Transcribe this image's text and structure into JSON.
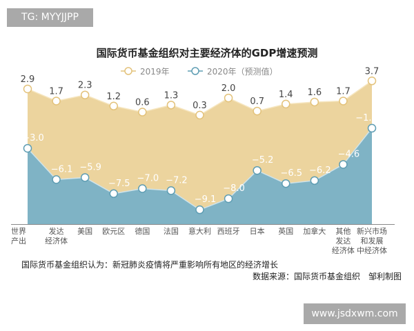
{
  "watermarks": {
    "top_left": "TG: MYYJJPP",
    "bottom_right": "www.jsdxwm.com"
  },
  "chart_data": {
    "type": "area",
    "title": "国际货币基金组织对主要经济体的GDP增速预测",
    "categories": [
      "世界\n产出",
      "发达\n经济体",
      "美国",
      "欧元区",
      "德国",
      "法国",
      "意大利",
      "西班牙",
      "日本",
      "英国",
      "加拿大",
      "其他\n发达\n经济体",
      "新兴市场\n和发展\n中经济体"
    ],
    "series": [
      {
        "name": "2019年",
        "color": "#ecd49e",
        "values": [
          2.9,
          1.7,
          2.3,
          1.2,
          0.6,
          1.3,
          0.3,
          2.0,
          0.7,
          1.4,
          1.6,
          1.7,
          3.7
        ],
        "labels": [
          "2.9",
          "1.7",
          "2.3",
          "1.2",
          "0.6",
          "1.3",
          "0.3",
          "2.0",
          "0.7",
          "1.4",
          "1.6",
          "1.7",
          "3.7"
        ]
      },
      {
        "name": "2020年（预测值）",
        "color": "#7fb3c5",
        "values": [
          -3.0,
          -6.1,
          -5.9,
          -7.5,
          -7.0,
          -7.2,
          -9.1,
          -8.0,
          -5.2,
          -6.5,
          -6.2,
          -4.6,
          -1.0
        ],
        "labels": [
          "−3.0",
          "−6.1",
          "−5.9",
          "−7.5",
          "−7.0",
          "−7.2",
          "−9.1",
          "−8.0",
          "−5.2",
          "−6.5",
          "−6.2",
          "−4.6",
          "−1.0"
        ]
      }
    ],
    "legend": "top-center",
    "grid": false
  },
  "note": "国际货币基金组织认为：新冠肺炎疫情将严重影响所有地区的经济增长",
  "source": "数据来源：国际货币基金组织　邹利制图"
}
